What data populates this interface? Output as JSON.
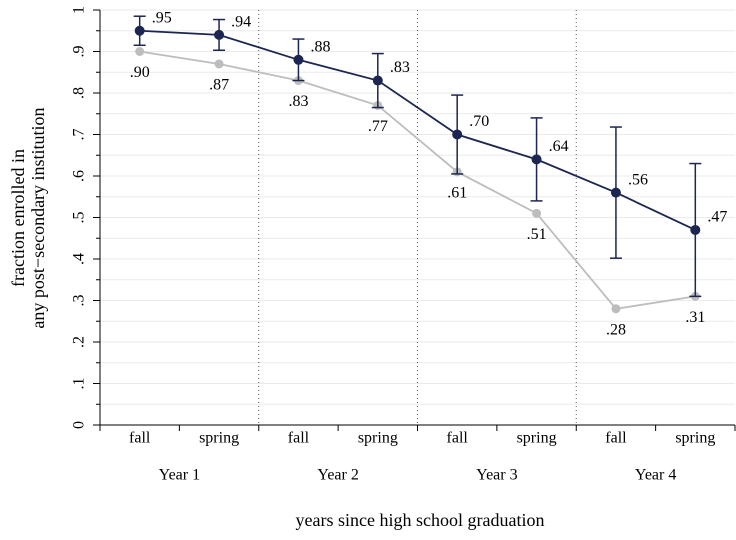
{
  "chart_data": {
    "type": "line",
    "x_title": "years since high school graduation",
    "y_title": [
      "fraction enrolled in",
      "any post−secondary institution"
    ],
    "categories": [
      "fall",
      "spring",
      "fall",
      "spring",
      "fall",
      "spring",
      "fall",
      "spring"
    ],
    "groups": [
      "Year 1",
      "Year 2",
      "Year 3",
      "Year 4"
    ],
    "series": [
      {
        "color": "#bdbdbd",
        "values": [
          0.9,
          0.87,
          0.83,
          0.77,
          0.61,
          0.51,
          0.28,
          0.31
        ],
        "value_labels": [
          ".90",
          ".87",
          ".83",
          ".77",
          ".61",
          ".51",
          ".28",
          ".31"
        ],
        "label_position": "below"
      },
      {
        "color": "#1c2650",
        "values": [
          0.95,
          0.94,
          0.88,
          0.83,
          0.7,
          0.64,
          0.56,
          0.47
        ],
        "value_labels": [
          ".95",
          ".94",
          ".88",
          ".83",
          ".70",
          ".64",
          ".56",
          ".47"
        ],
        "label_position": "right",
        "errors": [
          0.035,
          0.037,
          0.05,
          0.065,
          0.095,
          0.1,
          0.158,
          0.16
        ]
      }
    ],
    "ylim": [
      0,
      1
    ],
    "yticks": [
      0,
      {
        "value": 0.1,
        "label": ".1"
      },
      {
        "value": 0.2,
        "label": ".2"
      },
      {
        "value": 0.3,
        "label": ".3"
      },
      {
        "value": 0.4,
        "label": ".4"
      },
      {
        "value": 0.5,
        "label": ".5"
      },
      {
        "value": 0.6,
        "label": ".6"
      },
      {
        "value": 0.7,
        "label": ".7"
      },
      {
        "value": 0.8,
        "label": ".8"
      },
      {
        "value": 0.9,
        "label": ".9"
      },
      1
    ],
    "minor_yticks": [
      0.05,
      0.15,
      0.25,
      0.35,
      0.45,
      0.55,
      0.65,
      0.75,
      0.85,
      0.95
    ],
    "grid": true
  }
}
